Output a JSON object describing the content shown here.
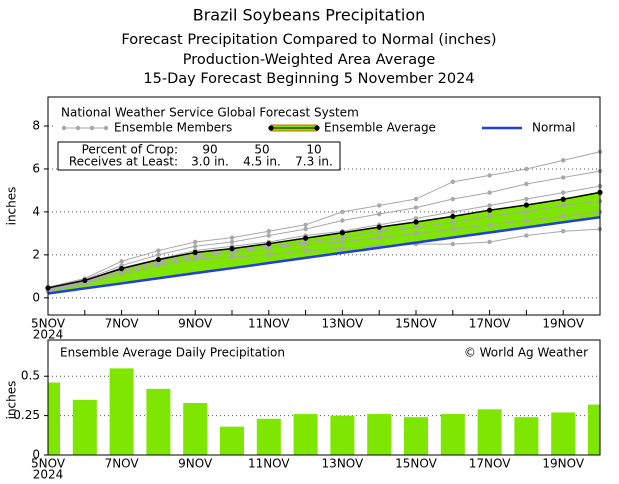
{
  "chart_data": [
    {
      "type": "line",
      "title": "Brazil Soybeans Precipitation",
      "subtitle": [
        "Forecast Precipitation Compared to Normal (inches)",
        "Production-Weighted Area Average",
        "15-Day Forecast Beginning 5 November 2024"
      ],
      "ylabel": "inches",
      "source": "National Weather Service Global Forecast System",
      "categories": [
        "5NOV",
        null,
        "7NOV",
        null,
        "9NOV",
        null,
        "11NOV",
        null,
        "13NOV",
        null,
        "15NOV",
        null,
        "17NOV",
        null,
        "19NOV",
        null
      ],
      "year": "2024",
      "ylim": [
        -0.8,
        9.35
      ],
      "yticks": [
        0,
        2,
        4,
        6,
        8
      ],
      "grid": true,
      "fill_color": "#7ee600",
      "members": {
        "name": "Ensemble Members",
        "color": "#a8a8a8",
        "values": [
          [
            0.5,
            0.9,
            1.7,
            2.2,
            2.6,
            2.8,
            3.1,
            3.4,
            4.0,
            4.3,
            4.6,
            5.4,
            5.7,
            6.0,
            6.4,
            6.8
          ],
          [
            0.45,
            0.85,
            1.5,
            2.0,
            2.4,
            2.6,
            2.9,
            3.2,
            3.6,
            3.9,
            4.2,
            4.6,
            4.9,
            5.3,
            5.6,
            5.9
          ],
          [
            0.4,
            0.8,
            1.4,
            1.8,
            2.2,
            2.4,
            2.6,
            2.9,
            3.1,
            3.4,
            3.7,
            4.0,
            4.3,
            4.6,
            4.9,
            5.2
          ],
          [
            0.4,
            0.75,
            1.3,
            1.7,
            2.0,
            2.2,
            2.4,
            2.6,
            2.8,
            3.1,
            3.3,
            3.5,
            3.8,
            4.0,
            4.3,
            4.5
          ],
          [
            0.35,
            0.7,
            1.2,
            1.6,
            1.9,
            2.1,
            2.3,
            2.5,
            2.6,
            2.8,
            3.0,
            3.2,
            3.4,
            3.6,
            3.8,
            4.0
          ],
          [
            0.3,
            0.65,
            1.1,
            1.5,
            1.8,
            1.9,
            2.0,
            2.2,
            2.3,
            2.4,
            2.5,
            2.5,
            2.6,
            2.9,
            3.1,
            3.2
          ]
        ]
      },
      "series": [
        {
          "name": "Ensemble Average",
          "color": "#000000",
          "values": [
            0.46,
            0.81,
            1.36,
            1.78,
            2.11,
            2.29,
            2.52,
            2.78,
            3.03,
            3.29,
            3.53,
            3.79,
            4.08,
            4.32,
            4.59,
            4.91
          ]
        },
        {
          "name": "Normal",
          "color": "#1f3fe0",
          "values": [
            0.2,
            0.44,
            0.67,
            0.91,
            1.15,
            1.38,
            1.62,
            1.86,
            2.1,
            2.33,
            2.57,
            2.81,
            3.04,
            3.28,
            3.52,
            3.75
          ]
        }
      ],
      "crop_table": {
        "row_labels": [
          "Percent of Crop:",
          "Receives at Least:"
        ],
        "percents": [
          "90",
          "50",
          "10"
        ],
        "amounts": [
          "3.0 in.",
          "4.5 in.",
          "7.3 in."
        ]
      }
    },
    {
      "type": "bar",
      "title": "Ensemble Average Daily Precipitation",
      "annotation": "© World Ag Weather",
      "ylabel": "inches",
      "color": "#7ee600",
      "ylim": [
        0,
        0.73
      ],
      "yticks": [
        0,
        0.25,
        0.5
      ],
      "grid": true,
      "values": [
        0.46,
        0.35,
        0.55,
        0.42,
        0.33,
        0.18,
        0.23,
        0.26,
        0.25,
        0.26,
        0.24,
        0.26,
        0.29,
        0.24,
        0.27,
        0.32
      ]
    }
  ]
}
